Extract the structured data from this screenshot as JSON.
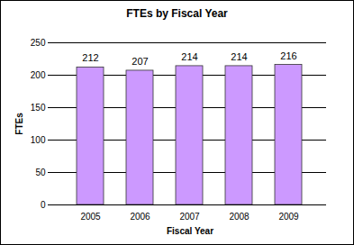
{
  "chart_data": {
    "type": "bar",
    "title": "FTEs by Fiscal Year",
    "x_label": "Fiscal Year",
    "y_label": "FTEs",
    "categories": [
      "2005",
      "2006",
      "2007",
      "2008",
      "2009"
    ],
    "values": [
      212,
      207,
      214,
      214,
      216
    ],
    "color": "#cc99ff",
    "ylim": [
      0,
      250
    ],
    "yticks": [
      0,
      50,
      100,
      150,
      200,
      250
    ],
    "grid": true,
    "data_labels": true
  }
}
